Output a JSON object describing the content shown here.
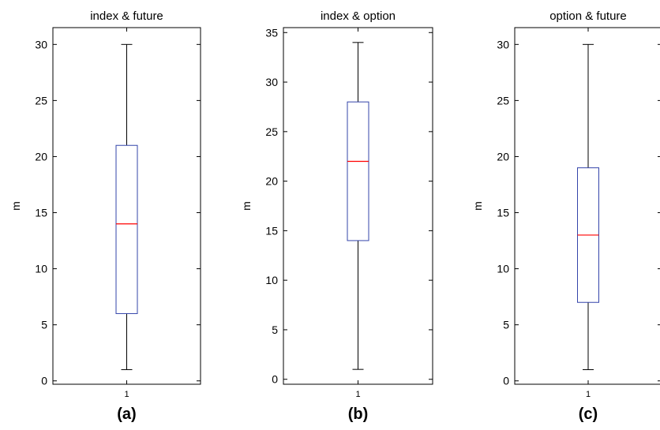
{
  "chart_data": [
    {
      "type": "box",
      "panel_label": "(a)",
      "title": "index & future",
      "ylabel": "m",
      "categories": [
        "1"
      ],
      "ylim": [
        -0.3,
        31.5
      ],
      "yticks": [
        0,
        5,
        10,
        15,
        20,
        25,
        30
      ],
      "box": {
        "min": 1,
        "q1": 6,
        "median": 14,
        "q3": 21,
        "max": 30
      },
      "colors": {
        "box": "#3344aa",
        "median": "#ff0000",
        "whisker": "#000000"
      }
    },
    {
      "type": "box",
      "panel_label": "(b)",
      "title": "index & option",
      "ylabel": "m",
      "categories": [
        "1"
      ],
      "ylim": [
        -0.5,
        35.5
      ],
      "yticks": [
        0,
        5,
        10,
        15,
        20,
        25,
        30,
        35
      ],
      "box": {
        "min": 1,
        "q1": 14,
        "median": 22,
        "q3": 28,
        "max": 34
      },
      "colors": {
        "box": "#3344aa",
        "median": "#ff0000",
        "whisker": "#000000"
      }
    },
    {
      "type": "box",
      "panel_label": "(c)",
      "title": "option & future",
      "ylabel": "m",
      "categories": [
        "1"
      ],
      "ylim": [
        -0.3,
        31.5
      ],
      "yticks": [
        0,
        5,
        10,
        15,
        20,
        25,
        30
      ],
      "box": {
        "min": 1,
        "q1": 7,
        "median": 13,
        "q3": 19,
        "max": 30
      },
      "colors": {
        "box": "#3344aa",
        "median": "#ff0000",
        "whisker": "#000000"
      }
    }
  ]
}
